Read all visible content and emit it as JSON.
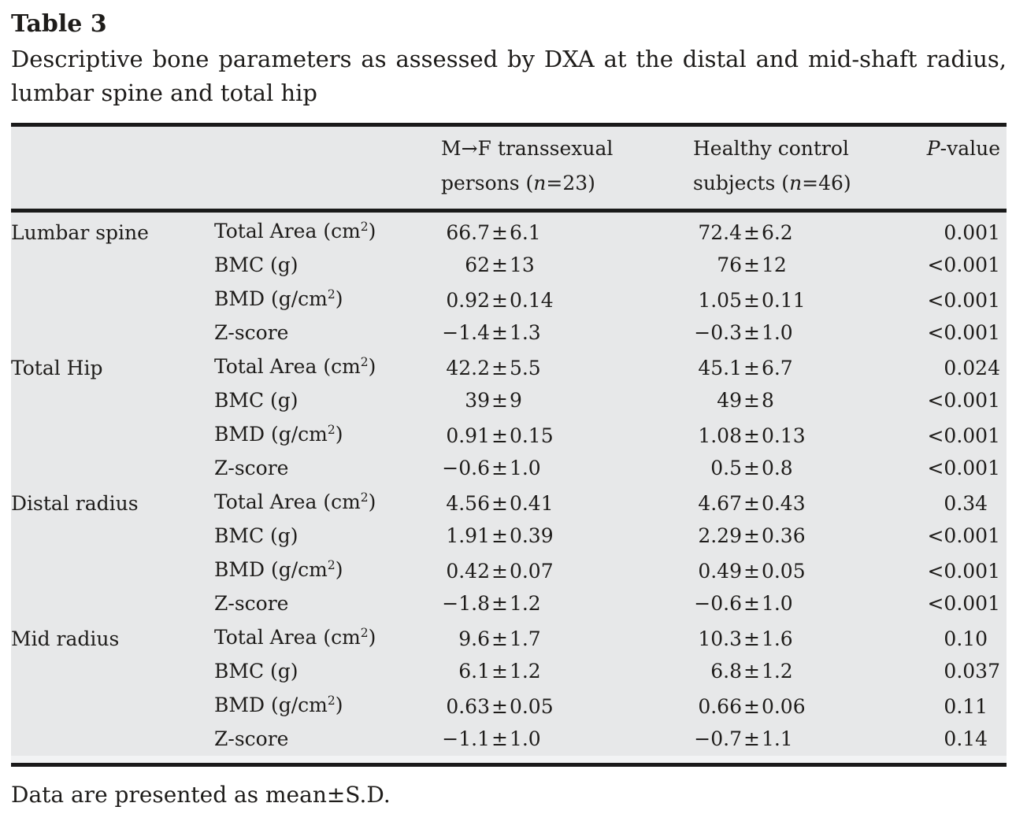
{
  "title": "Table 3",
  "caption": {
    "line1": "Descriptive bone parameters as assessed by DXA at the distal and mid-shaft radius,",
    "line2": "lumbar spine and total hip"
  },
  "colors": {
    "table_background": "#e7e8e9",
    "rule": "#1a1a1a",
    "text": "#1e1c1a"
  },
  "table": {
    "header": {
      "mf": {
        "line1": "M→F transsexual",
        "line2_pre": "persons (",
        "line2_italic": "n",
        "line2_post": "=23)"
      },
      "hc": {
        "line1": "Healthy control",
        "line2_pre": "subjects (",
        "line2_italic": "n",
        "line2_post": "=46)"
      },
      "p": {
        "italic": "P",
        "rest": "-value"
      }
    },
    "sections": [
      {
        "site": "Lumbar spine",
        "rows": [
          {
            "parameter": "Total Area (cm²)",
            "mf": "66.7±6.1",
            "hc": "72.4±6.2",
            "p": "0.001"
          },
          {
            "parameter": "BMC (g)",
            "mf": "62±13",
            "hc": "76±12",
            "p": "<0.001"
          },
          {
            "parameter": "BMD (g/cm²)",
            "mf": "0.92±0.14",
            "hc": "1.05±0.11",
            "p": "<0.001"
          },
          {
            "parameter": "Z-score",
            "mf": "−1.4±1.3",
            "hc": "−0.3±1.0",
            "p": "<0.001"
          }
        ]
      },
      {
        "site": "Total Hip",
        "rows": [
          {
            "parameter": "Total Area (cm²)",
            "mf": "42.2±5.5",
            "hc": "45.1±6.7",
            "p": "0.024"
          },
          {
            "parameter": "BMC (g)",
            "mf": "39±9",
            "hc": "49±8",
            "p": "<0.001"
          },
          {
            "parameter": "BMD (g/cm²)",
            "mf": "0.91±0.15",
            "hc": "1.08±0.13",
            "p": "<0.001"
          },
          {
            "parameter": "Z-score",
            "mf": "−0.6±1.0",
            "hc": "0.5±0.8",
            "p": "<0.001"
          }
        ]
      },
      {
        "site": "Distal radius",
        "rows": [
          {
            "parameter": "Total Area (cm²)",
            "mf": "4.56±0.41",
            "hc": "4.67±0.43",
            "p": "0.34"
          },
          {
            "parameter": "BMC (g)",
            "mf": "1.91±0.39",
            "hc": "2.29±0.36",
            "p": "<0.001"
          },
          {
            "parameter": "BMD (g/cm²)",
            "mf": "0.42±0.07",
            "hc": "0.49±0.05",
            "p": "<0.001"
          },
          {
            "parameter": "Z-score",
            "mf": "−1.8±1.2",
            "hc": "−0.6±1.0",
            "p": "<0.001"
          }
        ]
      },
      {
        "site": "Mid radius",
        "rows": [
          {
            "parameter": "Total Area (cm²)",
            "mf": "9.6±1.7",
            "hc": "10.3±1.6",
            "p": "0.10"
          },
          {
            "parameter": "BMC (g)",
            "mf": "6.1±1.2",
            "hc": "6.8±1.2",
            "p": "0.037"
          },
          {
            "parameter": "BMD (g/cm²)",
            "mf": "0.63±0.05",
            "hc": "0.66±0.06",
            "p": "0.11"
          },
          {
            "parameter": "Z-score",
            "mf": "−1.1±1.0",
            "hc": "−0.7±1.1",
            "p": "0.14"
          }
        ]
      }
    ]
  },
  "footnote": "Data are presented as mean±S.D."
}
